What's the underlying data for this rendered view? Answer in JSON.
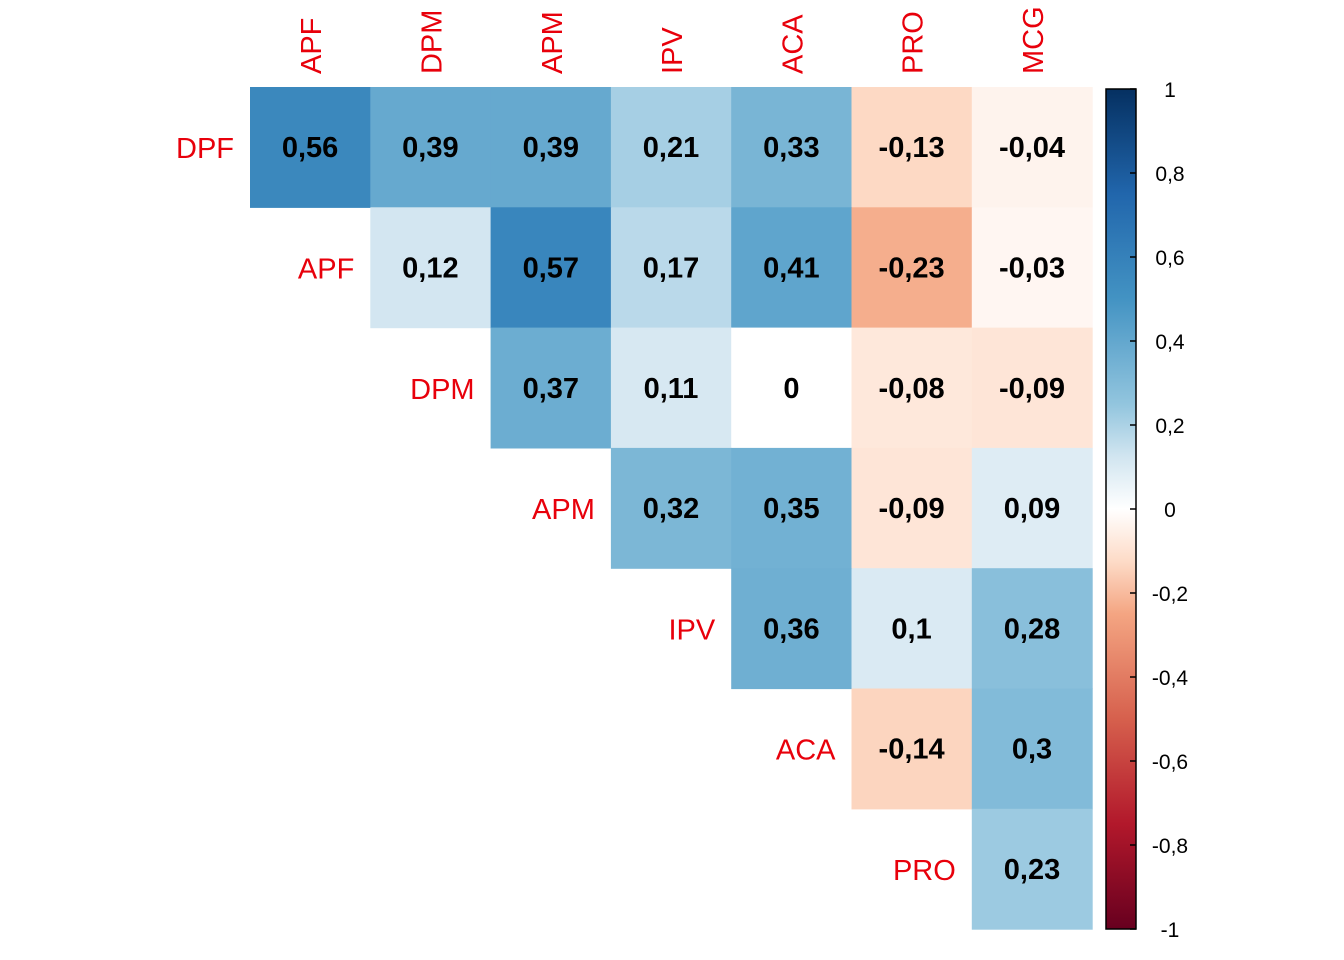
{
  "chart_data": {
    "type": "heatmap",
    "subtype": "upper-triangular correlation matrix",
    "title": "",
    "label_color": "#e8000b",
    "column_labels": [
      "APF",
      "DPM",
      "APM",
      "IPV",
      "ACA",
      "PRO",
      "MCG"
    ],
    "row_labels": [
      "DPF",
      "APF",
      "DPM",
      "APM",
      "IPV",
      "ACA",
      "PRO"
    ],
    "cells": [
      {
        "row": 0,
        "col": 0,
        "value": 0.56,
        "label": "0,56"
      },
      {
        "row": 0,
        "col": 1,
        "value": 0.39,
        "label": "0,39"
      },
      {
        "row": 0,
        "col": 2,
        "value": 0.39,
        "label": "0,39"
      },
      {
        "row": 0,
        "col": 3,
        "value": 0.21,
        "label": "0,21"
      },
      {
        "row": 0,
        "col": 4,
        "value": 0.33,
        "label": "0,33"
      },
      {
        "row": 0,
        "col": 5,
        "value": -0.13,
        "label": "-0,13"
      },
      {
        "row": 0,
        "col": 6,
        "value": -0.04,
        "label": "-0,04"
      },
      {
        "row": 1,
        "col": 1,
        "value": 0.12,
        "label": "0,12"
      },
      {
        "row": 1,
        "col": 2,
        "value": 0.57,
        "label": "0,57"
      },
      {
        "row": 1,
        "col": 3,
        "value": 0.17,
        "label": "0,17"
      },
      {
        "row": 1,
        "col": 4,
        "value": 0.41,
        "label": "0,41"
      },
      {
        "row": 1,
        "col": 5,
        "value": -0.23,
        "label": "-0,23"
      },
      {
        "row": 1,
        "col": 6,
        "value": -0.03,
        "label": "-0,03"
      },
      {
        "row": 2,
        "col": 2,
        "value": 0.37,
        "label": "0,37"
      },
      {
        "row": 2,
        "col": 3,
        "value": 0.11,
        "label": "0,11"
      },
      {
        "row": 2,
        "col": 4,
        "value": 0,
        "label": "0"
      },
      {
        "row": 2,
        "col": 5,
        "value": -0.08,
        "label": "-0,08"
      },
      {
        "row": 2,
        "col": 6,
        "value": -0.09,
        "label": "-0,09"
      },
      {
        "row": 3,
        "col": 3,
        "value": 0.32,
        "label": "0,32"
      },
      {
        "row": 3,
        "col": 4,
        "value": 0.35,
        "label": "0,35"
      },
      {
        "row": 3,
        "col": 5,
        "value": -0.09,
        "label": "-0,09"
      },
      {
        "row": 3,
        "col": 6,
        "value": 0.09,
        "label": "0,09"
      },
      {
        "row": 4,
        "col": 4,
        "value": 0.36,
        "label": "0,36"
      },
      {
        "row": 4,
        "col": 5,
        "value": 0.1,
        "label": "0,1"
      },
      {
        "row": 4,
        "col": 6,
        "value": 0.28,
        "label": "0,28"
      },
      {
        "row": 5,
        "col": 5,
        "value": -0.14,
        "label": "-0,14"
      },
      {
        "row": 5,
        "col": 6,
        "value": 0.3,
        "label": "0,3"
      },
      {
        "row": 6,
        "col": 6,
        "value": 0.23,
        "label": "0,23"
      }
    ],
    "colorbar": {
      "range": [
        -1,
        1
      ],
      "tick_values": [
        1,
        0.8,
        0.6,
        0.4,
        0.2,
        0,
        -0.2,
        -0.4,
        -0.6,
        -0.8,
        -1
      ],
      "tick_labels": [
        "1",
        "0,8",
        "0,6",
        "0,4",
        "0,2",
        "0",
        "-0,2",
        "-0,4",
        "-0,6",
        "-0,8",
        "-1"
      ],
      "color_stops": [
        {
          "value": -1,
          "color": "#67001f"
        },
        {
          "value": -0.75,
          "color": "#b2182b"
        },
        {
          "value": -0.5,
          "color": "#d6604d"
        },
        {
          "value": -0.25,
          "color": "#f4a582"
        },
        {
          "value": -0.125,
          "color": "#fddbc7"
        },
        {
          "value": 0,
          "color": "#ffffff"
        },
        {
          "value": 0.125,
          "color": "#d1e5f0"
        },
        {
          "value": 0.25,
          "color": "#92c5de"
        },
        {
          "value": 0.5,
          "color": "#4393c3"
        },
        {
          "value": 0.75,
          "color": "#2166ac"
        },
        {
          "value": 1,
          "color": "#053061"
        }
      ]
    }
  }
}
